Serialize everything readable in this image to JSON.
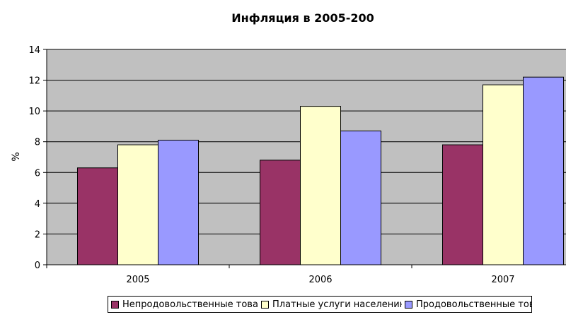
{
  "chart_data": {
    "type": "bar",
    "title": "Инфляция в 2005-200",
    "xlabel": "",
    "ylabel": "%",
    "categories": [
      "2005",
      "2006",
      "2007"
    ],
    "ylim": [
      0,
      14
    ],
    "yticks": [
      0,
      2,
      4,
      6,
      8,
      10,
      12,
      14
    ],
    "grid": true,
    "legend_position": "bottom",
    "series": [
      {
        "name": "Непродовольственные товары",
        "values": [
          6.3,
          6.8,
          7.8
        ],
        "color": "#993366"
      },
      {
        "name": "Платные услуги населению",
        "values": [
          7.8,
          10.3,
          11.7
        ],
        "color": "#FFFFCC"
      },
      {
        "name": "Продовольственные товары",
        "values": [
          8.1,
          8.7,
          12.2
        ],
        "color": "#9999FF"
      }
    ],
    "plot_background": "#C0C0C0"
  }
}
